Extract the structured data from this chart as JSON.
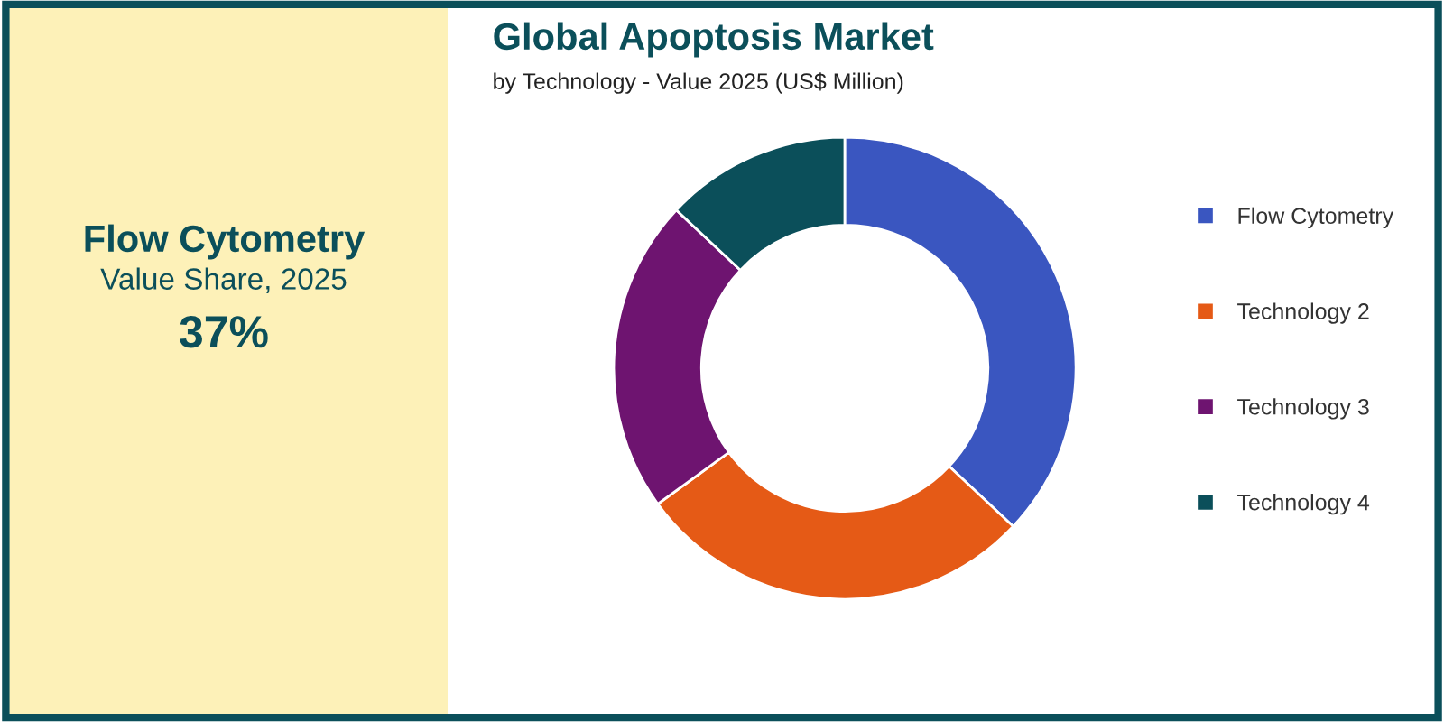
{
  "chart_data": {
    "type": "donut",
    "title": "Global Apoptosis Market",
    "subtitle": "by Technology - Value 2025 (US$ Million)",
    "categories": [
      "Flow Cytometry",
      "Technology 2",
      "Technology 3",
      "Technology 4"
    ],
    "values": [
      37,
      28,
      22,
      13
    ],
    "colors": [
      "#3a56c0",
      "#e55a16",
      "#6e1470",
      "#0b4f5a"
    ],
    "legend": "right",
    "annotations": [
      "Flow Cytometry",
      "Value Share, 2025",
      "37%"
    ]
  }
}
